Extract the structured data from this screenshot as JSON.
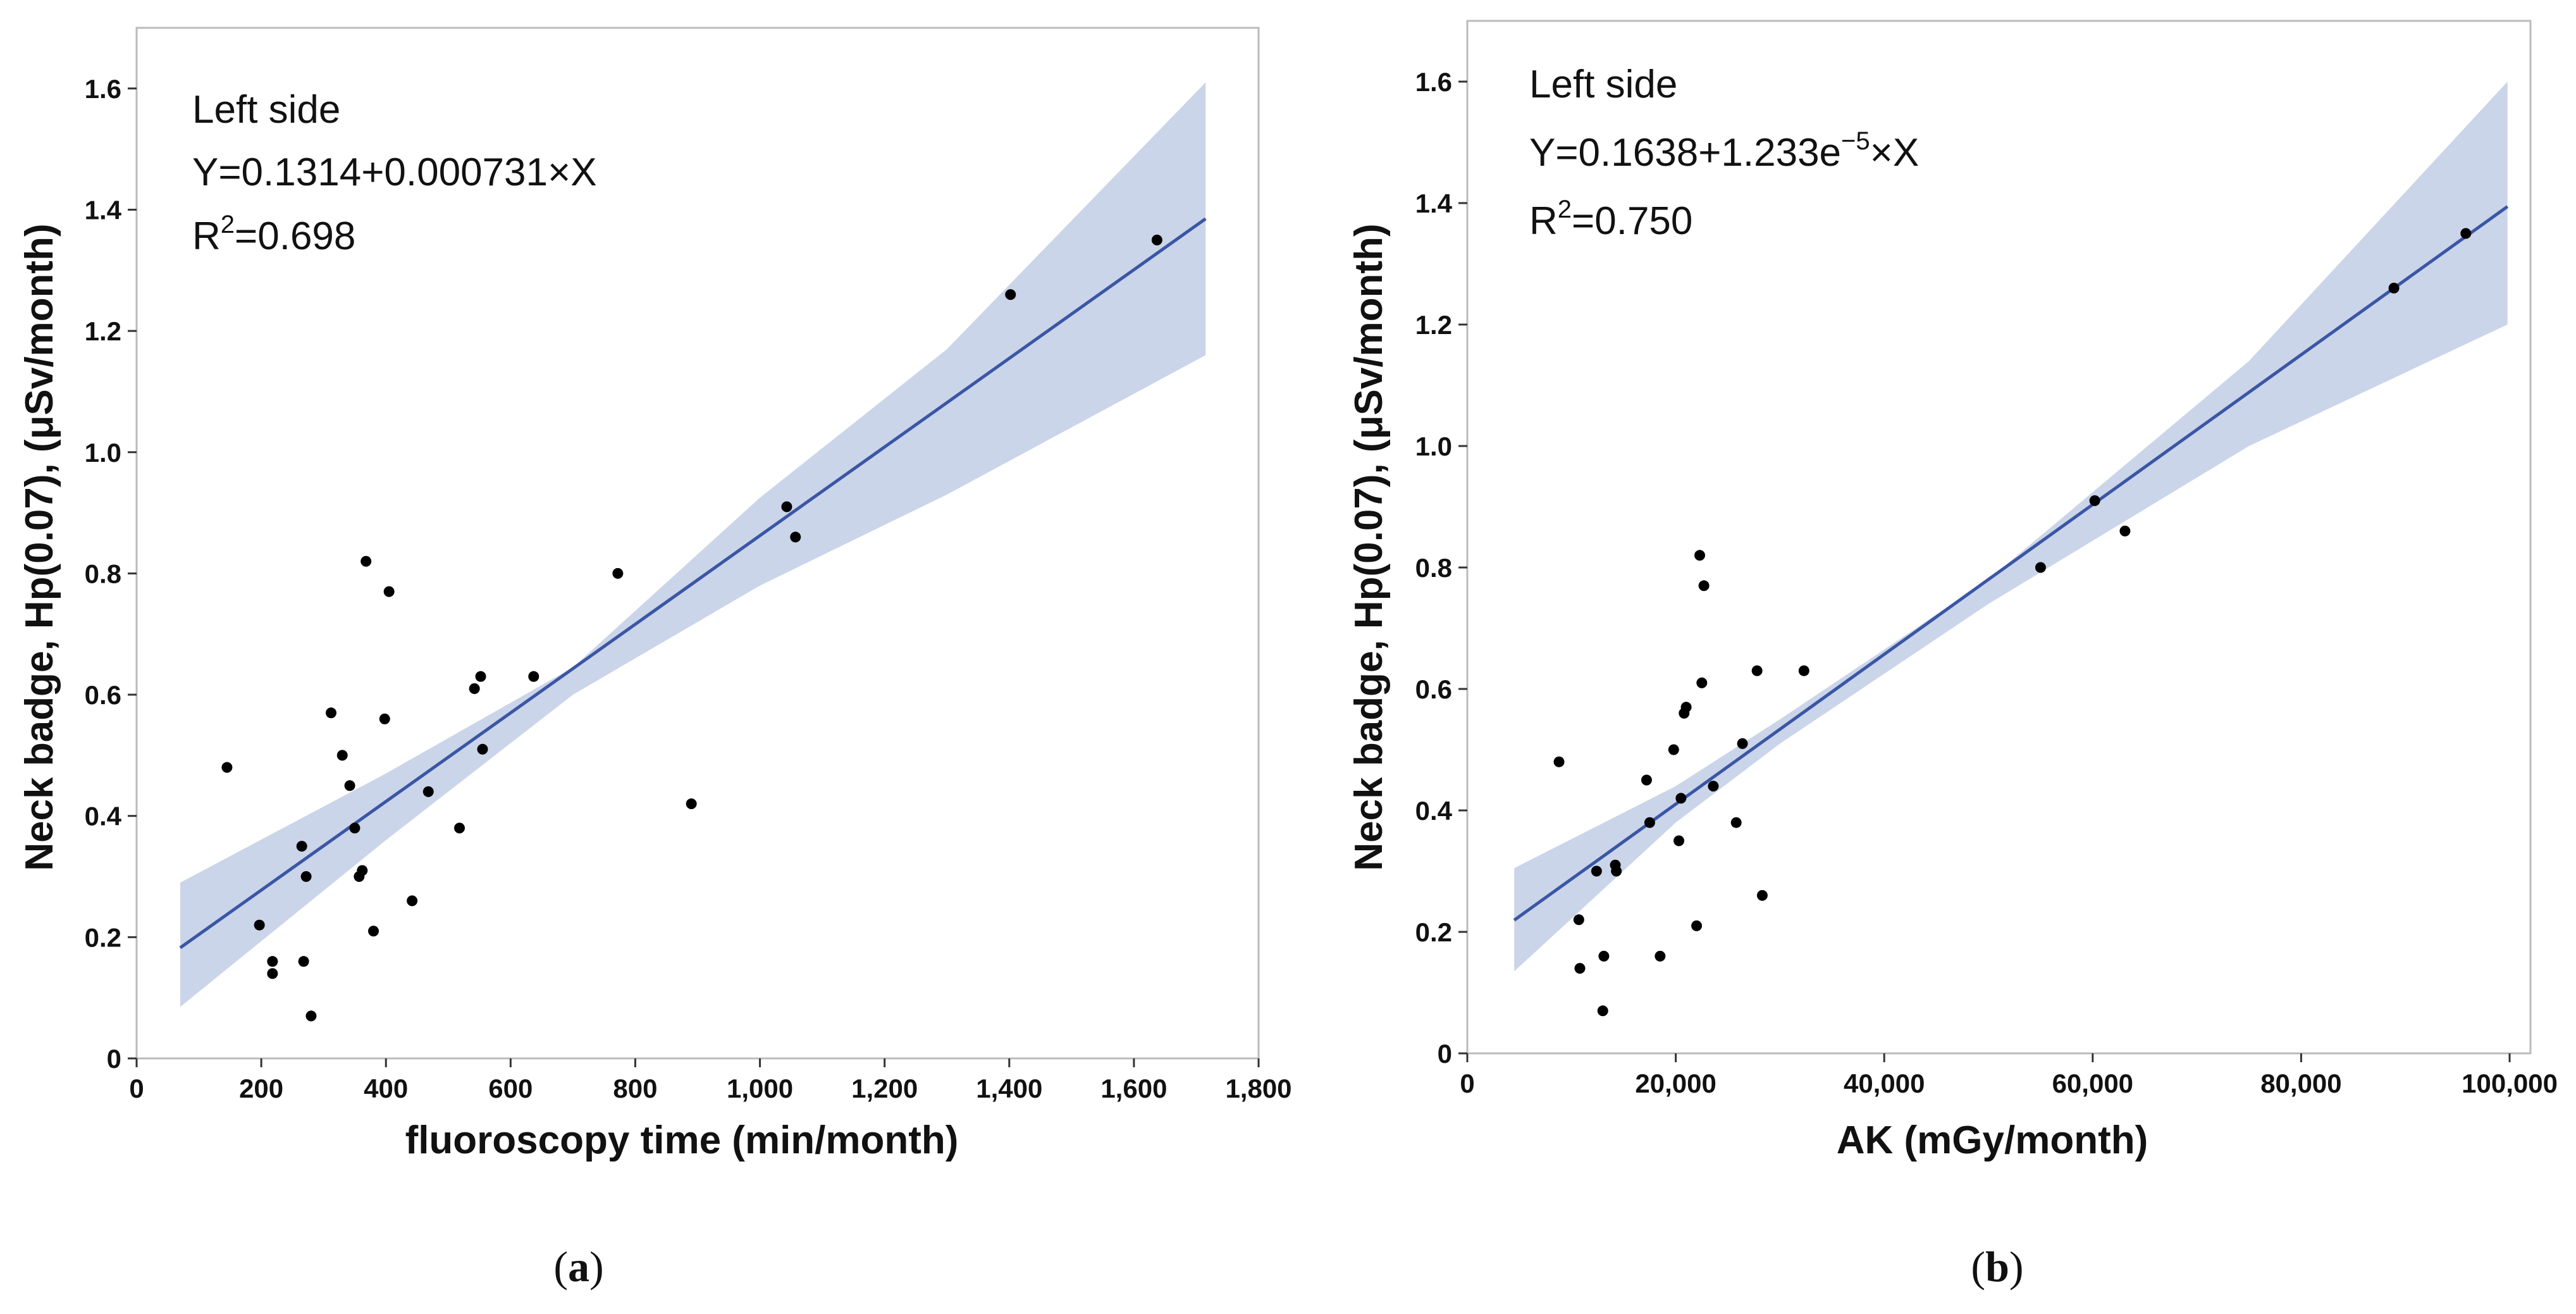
{
  "chart_data": [
    {
      "type": "scatter",
      "panel_label": "(a)",
      "xlabel": "fluoroscopy time (min/month)",
      "ylabel": "Neck badge, Hp(0.07), (μSv/month)",
      "xlim": [
        0,
        1800
      ],
      "ylim": [
        0,
        1.7
      ],
      "x_ticks": [
        0,
        200,
        400,
        600,
        800,
        1000,
        1200,
        1400,
        1600,
        1800
      ],
      "x_tick_labels": [
        "0",
        "200",
        "400",
        "600",
        "800",
        "1,000",
        "1,200",
        "1,400",
        "1,600",
        "1,800"
      ],
      "y_ticks": [
        0,
        0.2,
        0.4,
        0.6,
        0.8,
        1.0,
        1.2,
        1.4,
        1.6
      ],
      "y_tick_labels": [
        "0",
        "0.2",
        "0.4",
        "0.6",
        "0.8",
        "1.0",
        "1.2",
        "1.4",
        "1.6"
      ],
      "annotation": {
        "line1": "Left side",
        "equation": "Y=0.1314+0.000731×X",
        "r2_label": "R",
        "r2_sup": "2",
        "r2_value": "=0.698"
      },
      "fit": {
        "intercept": 0.1314,
        "slope": 0.000731,
        "x_range": [
          70,
          1715
        ]
      },
      "band": {
        "x": [
          70,
          400,
          700,
          1000,
          1300,
          1715
        ],
        "lower": [
          0.085,
          0.36,
          0.6,
          0.78,
          0.93,
          1.16
        ],
        "upper": [
          0.29,
          0.47,
          0.645,
          0.925,
          1.17,
          1.61
        ]
      },
      "points": {
        "x": [
          145,
          197,
          218,
          218,
          265,
          268,
          272,
          280,
          312,
          330,
          342,
          350,
          357,
          362,
          368,
          380,
          398,
          405,
          442,
          468,
          518,
          542,
          552,
          555,
          637,
          772,
          890,
          1043,
          1057,
          1402,
          1637
        ],
        "y": [
          0.48,
          0.22,
          0.16,
          0.14,
          0.35,
          0.16,
          0.3,
          0.07,
          0.57,
          0.5,
          0.45,
          0.38,
          0.3,
          0.31,
          0.82,
          0.21,
          0.56,
          0.77,
          0.26,
          0.44,
          0.38,
          0.61,
          0.63,
          0.51,
          0.63,
          0.8,
          0.42,
          0.91,
          0.86,
          1.26,
          1.35
        ]
      },
      "colors": {
        "line": "#3a56a5",
        "band": "#cbd5e9",
        "point": "#000000",
        "frame": "#bbbbbb"
      }
    },
    {
      "type": "scatter",
      "panel_label": "(b)",
      "xlabel": "AK (mGy/month)",
      "ylabel": "Neck badge, Hp(0.07), (μSv/month)",
      "xlim": [
        0,
        102000
      ],
      "ylim": [
        0,
        1.7
      ],
      "x_ticks": [
        0,
        20000,
        40000,
        60000,
        80000,
        100000
      ],
      "x_tick_labels": [
        "0",
        "20,000",
        "40,000",
        "60,000",
        "80,000",
        "100,000"
      ],
      "y_ticks": [
        0,
        0.2,
        0.4,
        0.6,
        0.8,
        1.0,
        1.2,
        1.4,
        1.6
      ],
      "y_tick_labels": [
        "0",
        "0.2",
        "0.4",
        "0.6",
        "0.8",
        "1.0",
        "1.2",
        "1.4",
        "1.6"
      ],
      "annotation": {
        "line1": "Left side",
        "equation_base": "Y=0.1638+1.233e",
        "equation_sup": "−5",
        "equation_tail": "×X",
        "r2_label": "R",
        "r2_sup": "2",
        "r2_value": "=0.750"
      },
      "fit": {
        "intercept": 0.1638,
        "slope": 1.233e-05,
        "x_range": [
          4500,
          99800
        ]
      },
      "band": {
        "x": [
          4500,
          20000,
          30000,
          50000,
          75000,
          99800
        ],
        "lower": [
          0.135,
          0.38,
          0.51,
          0.74,
          1.0,
          1.2
        ],
        "upper": [
          0.305,
          0.44,
          0.55,
          0.78,
          1.14,
          1.6
        ]
      },
      "points": {
        "x": [
          8800,
          10700,
          10800,
          12400,
          13000,
          13100,
          14200,
          14300,
          17200,
          17500,
          18500,
          19800,
          20300,
          20500,
          20800,
          21000,
          22000,
          22300,
          22500,
          22700,
          23600,
          25800,
          26400,
          27800,
          28300,
          32300,
          55000,
          60200,
          63100,
          88900,
          95800
        ],
        "y": [
          0.48,
          0.22,
          0.14,
          0.3,
          0.07,
          0.16,
          0.31,
          0.3,
          0.45,
          0.38,
          0.16,
          0.5,
          0.35,
          0.42,
          0.56,
          0.57,
          0.21,
          0.82,
          0.61,
          0.77,
          0.44,
          0.38,
          0.51,
          0.63,
          0.26,
          0.63,
          0.8,
          0.91,
          0.86,
          1.26,
          1.35
        ]
      },
      "colors": {
        "line": "#3a56a5",
        "band": "#cbd5e9",
        "point": "#000000",
        "frame": "#bbbbbb"
      }
    }
  ]
}
